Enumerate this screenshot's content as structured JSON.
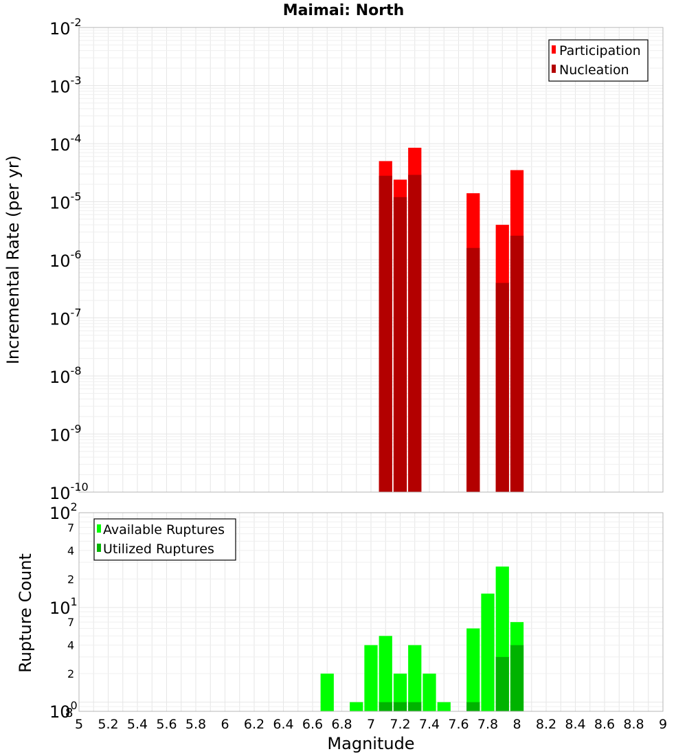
{
  "chart_data": {
    "type": "bar",
    "title": "Maimai: North",
    "xlabel": "Magnitude",
    "xlim": [
      5,
      9
    ],
    "x_ticks": [
      "5",
      "5.2",
      "5.4",
      "5.6",
      "5.8",
      "6",
      "6.2",
      "6.4",
      "6.6",
      "6.8",
      "7",
      "7.2",
      "7.4",
      "7.6",
      "7.8",
      "8",
      "8.2",
      "8.4",
      "8.6",
      "8.8",
      "9"
    ],
    "bin_width": 0.1,
    "panels": [
      {
        "id": "rate",
        "ylabel": "Incremental Rate (per yr)",
        "yscale": "log",
        "ylim": [
          1e-10,
          0.01
        ],
        "y_tick_labels": [
          {
            "base": "10",
            "exp": "-10"
          },
          {
            "base": "10",
            "exp": "-9"
          },
          {
            "base": "10",
            "exp": "-8"
          },
          {
            "base": "10",
            "exp": "-7"
          },
          {
            "base": "10",
            "exp": "-6"
          },
          {
            "base": "10",
            "exp": "-5"
          },
          {
            "base": "10",
            "exp": "-4"
          },
          {
            "base": "10",
            "exp": "-3"
          },
          {
            "base": "10",
            "exp": "-2"
          }
        ],
        "legend": {
          "position": "top-right"
        },
        "series": [
          {
            "name": "Participation",
            "color": "#ff0000",
            "x": [
              7.1,
              7.2,
              7.3,
              7.7,
              7.9,
              8.0
            ],
            "values": [
              5e-05,
              2.4e-05,
              8.5e-05,
              1.4e-05,
              4e-06,
              3.5e-05
            ]
          },
          {
            "name": "Nucleation",
            "color": "#b30000",
            "x": [
              7.1,
              7.2,
              7.3,
              7.7,
              7.9,
              8.0
            ],
            "values": [
              2.8e-05,
              1.2e-05,
              2.9e-05,
              1.6e-06,
              4e-07,
              2.6e-06
            ]
          }
        ]
      },
      {
        "id": "count",
        "ylabel": "Rupture Count",
        "yscale": "log",
        "ylim": [
          0.8,
          100
        ],
        "y_tick_labels": [
          {
            "base": "10",
            "exp": "0",
            "minor": "8"
          },
          {
            "base": "10",
            "exp": "1"
          },
          {
            "base": "10",
            "exp": "2"
          }
        ],
        "y_minor_labels": [
          "2",
          "4",
          "7",
          "2",
          "4",
          "7"
        ],
        "legend": {
          "position": "top-left"
        },
        "series": [
          {
            "name": "Available Ruptures",
            "color": "#00ff00",
            "x": [
              6.7,
              6.9,
              7.0,
              7.1,
              7.2,
              7.3,
              7.4,
              7.5,
              7.7,
              7.8,
              7.9,
              8.0
            ],
            "values": [
              2,
              1,
              4,
              5,
              2,
              4,
              2,
              1,
              6,
              14,
              27,
              7
            ]
          },
          {
            "name": "Utilized Ruptures",
            "color": "#00b300",
            "x": [
              7.1,
              7.2,
              7.3,
              7.7,
              7.9,
              8.0
            ],
            "values": [
              1,
              1,
              1,
              1,
              3,
              4
            ]
          }
        ]
      }
    ]
  }
}
